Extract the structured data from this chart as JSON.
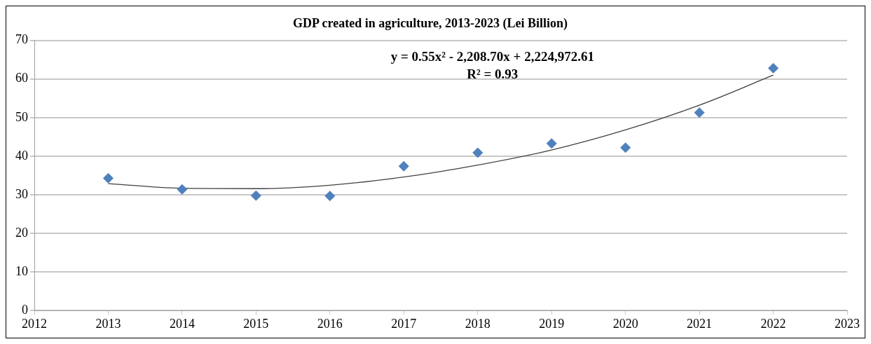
{
  "chart_data": {
    "type": "scatter",
    "title": "GDP created in agriculture, 2013-2023 (Lei Billion)",
    "x": [
      2013,
      2014,
      2015,
      2016,
      2017,
      2018,
      2019,
      2020,
      2021,
      2022
    ],
    "xlim": [
      2012,
      2023
    ],
    "xticks": [
      2012,
      2013,
      2014,
      2015,
      2016,
      2017,
      2018,
      2019,
      2020,
      2021,
      2022,
      2023
    ],
    "ylim": [
      0,
      70
    ],
    "yticks": [
      0,
      10,
      20,
      30,
      40,
      50,
      60,
      70
    ],
    "grid": "y",
    "legend": false,
    "marker": "diamond",
    "series": [
      {
        "type": "scatter",
        "color": "#4f81bd",
        "values": [
          34.3,
          31.4,
          29.8,
          29.7,
          37.4,
          40.9,
          43.3,
          42.2,
          51.3,
          62.8
        ]
      },
      {
        "type": "line",
        "color": "#404040",
        "marker": "none",
        "line_style": "solid",
        "x": [
          2013,
          2014,
          2015,
          2016,
          2017,
          2018,
          2019,
          2020,
          2021,
          2022
        ],
        "values": [
          32.9,
          31.7,
          31.6,
          32.5,
          34.6,
          37.7,
          41.6,
          46.8,
          53.2,
          61
        ]
      }
    ],
    "annotations": [
      "y = 0.55x² - 2,208.70x + 2,224,972.61",
      "R² = 0.93"
    ]
  }
}
